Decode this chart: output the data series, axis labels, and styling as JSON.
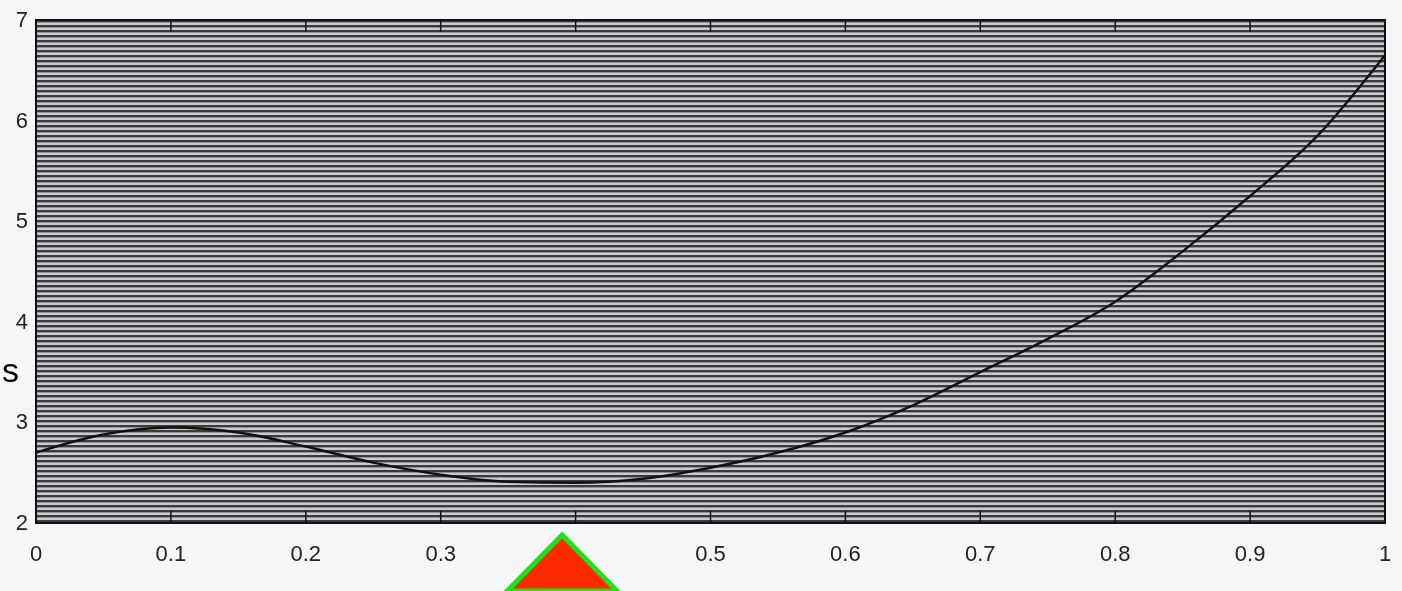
{
  "chart_data": {
    "type": "line",
    "annotations": [
      "s"
    ],
    "x": [
      0,
      0.05,
      0.1,
      0.15,
      0.2,
      0.25,
      0.3,
      0.35,
      0.4,
      0.45,
      0.5,
      0.55,
      0.6,
      0.65,
      0.7,
      0.75,
      0.8,
      0.85,
      0.9,
      0.95,
      1
    ],
    "series": [
      {
        "color": "#111111",
        "values": [
          2.7,
          2.88,
          2.95,
          2.9,
          2.76,
          2.6,
          2.48,
          2.41,
          2.4,
          2.44,
          2.55,
          2.7,
          2.9,
          3.17,
          3.5,
          3.83,
          4.2,
          4.7,
          5.25,
          5.85,
          6.65
        ]
      }
    ],
    "xlim": [
      0,
      1
    ],
    "ylim": [
      2,
      7
    ],
    "xticks": [
      0,
      0.1,
      0.2,
      0.3,
      {
        "value": 0.4,
        "label": null
      },
      0.5,
      0.6,
      0.7,
      0.8,
      0.9,
      1
    ],
    "yticks": [
      2,
      3,
      4,
      5,
      6,
      7
    ],
    "grid": false,
    "marker": "none",
    "line_style": "solid"
  }
}
